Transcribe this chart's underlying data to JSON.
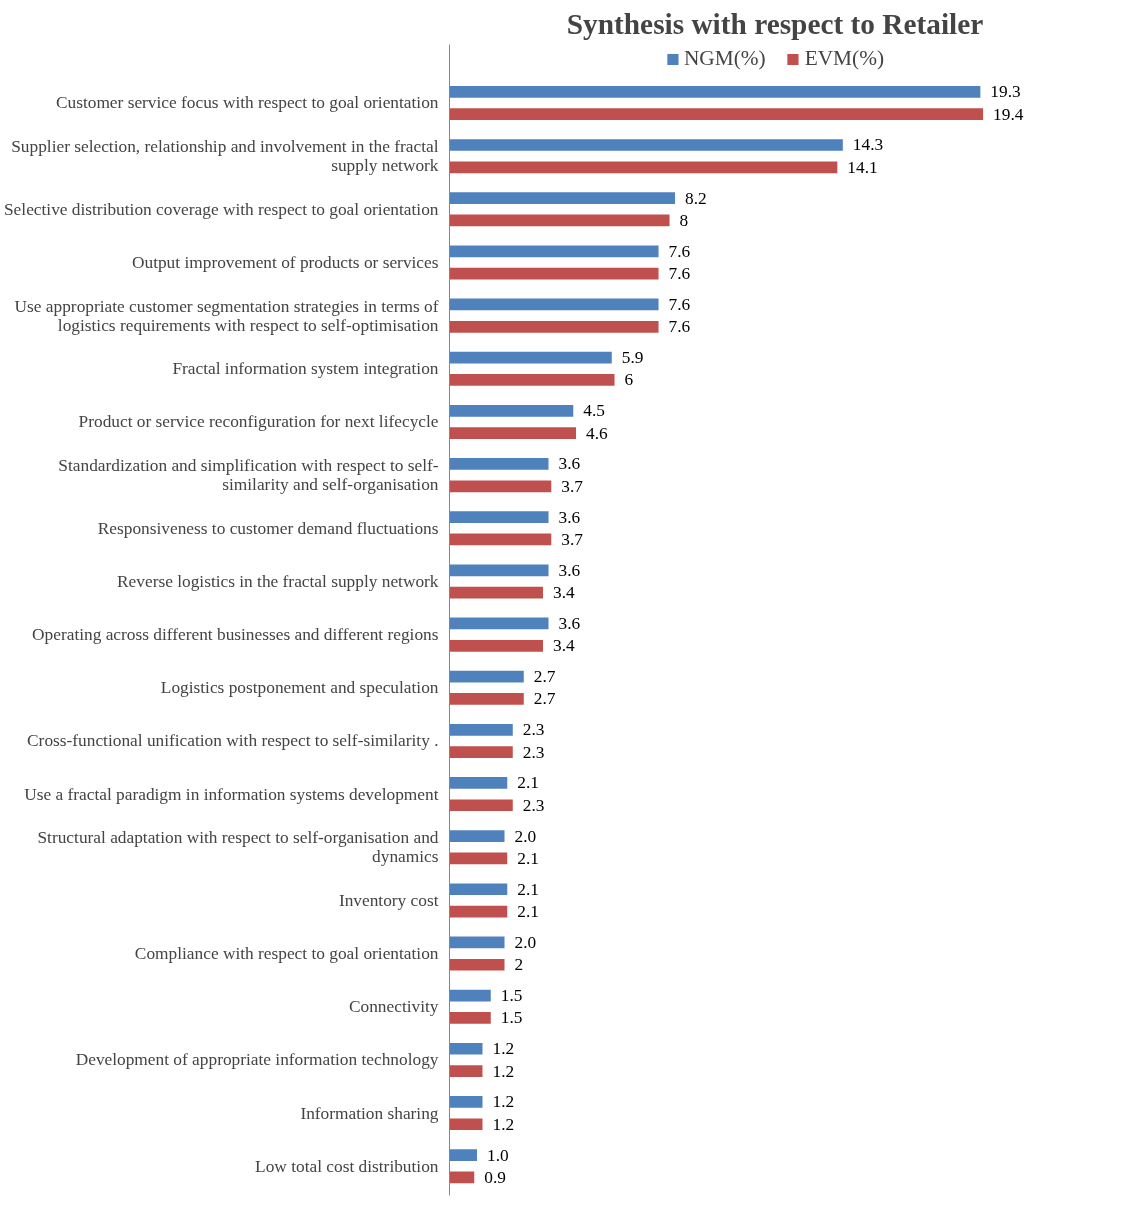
{
  "chart_data": {
    "type": "bar",
    "orientation": "horizontal",
    "title": "Synthesis with respect to Retailer",
    "legend": "top",
    "grid": false,
    "categories": [
      "Customer service focus with respect to goal orientation",
      "Supplier selection, relationship and involvement in the fractal supply network",
      "Selective distribution coverage with respect to goal orientation",
      "Output improvement of products or services",
      "Use appropriate customer segmentation strategies in terms of logistics requirements with respect to self-optimisation",
      "Fractal information system integration",
      "Product or service reconfiguration for next lifecycle",
      "Standardization and simplification with respect to self-similarity and self-organisation",
      "Responsiveness to customer demand fluctuations",
      "Reverse logistics in the fractal supply network",
      "Operating across different businesses and different regions",
      "Logistics postponement and speculation",
      "Cross-functional unification with respect to self-similarity .",
      "Use a fractal paradigm in information systems development",
      "Structural adaptation with respect to self-organisation and dynamics",
      "Inventory cost",
      "Compliance with respect to goal orientation",
      "Connectivity",
      "Development of appropriate information technology",
      "Information sharing",
      "Low total cost distribution"
    ],
    "series": [
      {
        "name": "NGM(%)",
        "color": "#4f81bd",
        "values": [
          19.3,
          14.3,
          8.2,
          7.6,
          7.6,
          5.9,
          4.5,
          3.6,
          3.6,
          3.6,
          3.6,
          2.7,
          2.3,
          2.1,
          2.0,
          2.1,
          2.0,
          1.5,
          1.2,
          1.2,
          1.0
        ],
        "value_labels": [
          "19.3",
          "14.3",
          "8.2",
          "7.6",
          "7.6",
          "5.9",
          "4.5",
          "3.6",
          "3.6",
          "3.6",
          "3.6",
          "2.7",
          "2.3",
          "2.1",
          "2.0",
          "2.1",
          "2.0",
          "1.5",
          "1.2",
          "1.2",
          "1.0"
        ]
      },
      {
        "name": "EVM(%)",
        "color": "#c0504d",
        "values": [
          19.4,
          14.1,
          8,
          7.6,
          7.6,
          6,
          4.6,
          3.7,
          3.7,
          3.4,
          3.4,
          2.7,
          2.3,
          2.3,
          2.1,
          2.1,
          2,
          1.5,
          1.2,
          1.2,
          0.9
        ],
        "value_labels": [
          "19.4",
          "14.1",
          "8",
          "7.6",
          "7.6",
          "6",
          "4.6",
          "3.7",
          "3.7",
          "3.4",
          "3.4",
          "2.7",
          "2.3",
          "2.3",
          "2.1",
          "2.1",
          "2",
          "1.5",
          "1.2",
          "1.2",
          "0.9"
        ]
      }
    ]
  }
}
